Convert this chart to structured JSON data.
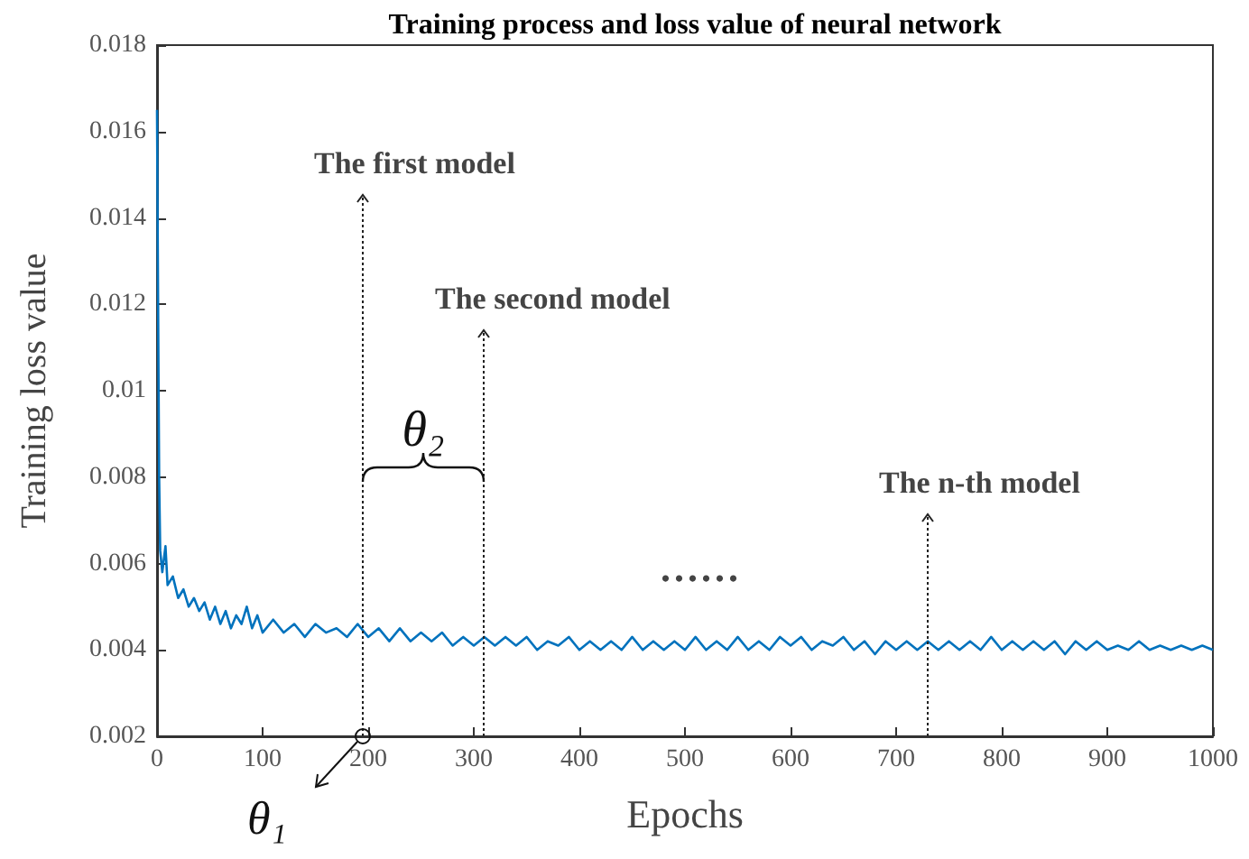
{
  "chart_data": {
    "type": "line",
    "title": "Training process and loss value of neural network",
    "xlabel": "Epochs",
    "ylabel": "Training loss value",
    "xlim": [
      0,
      1000
    ],
    "xticks": [
      0,
      100,
      200,
      300,
      400,
      500,
      600,
      700,
      800,
      900,
      1000
    ],
    "ylim": [
      0.002,
      0.018
    ],
    "yticks": [
      0.002,
      0.004,
      0.006,
      0.008,
      0.01,
      0.012,
      0.014,
      0.016,
      0.018
    ],
    "grid": false,
    "marker": "none",
    "line_style": "solid",
    "annotations": [
      "The first model",
      "The second model",
      "The n-th model",
      "θ₂",
      "θ₁",
      "......"
    ],
    "series": [
      {
        "color": "#0072bd",
        "x": [
          0,
          1,
          2,
          3,
          5,
          8,
          10,
          15,
          20,
          25,
          30,
          35,
          40,
          45,
          50,
          55,
          60,
          65,
          70,
          75,
          80,
          85,
          90,
          95,
          100,
          110,
          120,
          130,
          140,
          150,
          160,
          170,
          180,
          190,
          200,
          210,
          220,
          230,
          240,
          250,
          260,
          270,
          280,
          290,
          300,
          310,
          320,
          330,
          340,
          350,
          360,
          370,
          380,
          390,
          400,
          410,
          420,
          430,
          440,
          450,
          460,
          470,
          480,
          490,
          500,
          510,
          520,
          530,
          540,
          550,
          560,
          570,
          580,
          590,
          600,
          610,
          620,
          630,
          640,
          650,
          660,
          670,
          680,
          690,
          700,
          710,
          720,
          730,
          740,
          750,
          760,
          770,
          780,
          790,
          800,
          810,
          820,
          830,
          840,
          850,
          860,
          870,
          880,
          890,
          900,
          910,
          920,
          930,
          940,
          950,
          960,
          970,
          980,
          990,
          1000
        ],
        "values": [
          0.0165,
          0.012,
          0.008,
          0.0063,
          0.0058,
          0.0064,
          0.0055,
          0.0057,
          0.0052,
          0.0054,
          0.005,
          0.0052,
          0.0049,
          0.0051,
          0.0047,
          0.005,
          0.0046,
          0.0049,
          0.0045,
          0.0048,
          0.0046,
          0.005,
          0.0045,
          0.0048,
          0.0044,
          0.0047,
          0.0044,
          0.0046,
          0.0043,
          0.0046,
          0.0044,
          0.0045,
          0.0043,
          0.0046,
          0.0043,
          0.0045,
          0.0042,
          0.0045,
          0.0042,
          0.0044,
          0.0042,
          0.0044,
          0.0041,
          0.0043,
          0.0041,
          0.0043,
          0.0041,
          0.0043,
          0.0041,
          0.0043,
          0.004,
          0.0042,
          0.0041,
          0.0043,
          0.004,
          0.0042,
          0.004,
          0.0042,
          0.004,
          0.0043,
          0.004,
          0.0042,
          0.004,
          0.0042,
          0.004,
          0.0043,
          0.004,
          0.0042,
          0.004,
          0.0043,
          0.004,
          0.0042,
          0.004,
          0.0043,
          0.0041,
          0.0043,
          0.004,
          0.0042,
          0.0041,
          0.0043,
          0.004,
          0.0042,
          0.0039,
          0.0042,
          0.004,
          0.0042,
          0.004,
          0.0042,
          0.004,
          0.0042,
          0.004,
          0.0042,
          0.004,
          0.0043,
          0.004,
          0.0042,
          0.004,
          0.0042,
          0.004,
          0.0042,
          0.0039,
          0.0042,
          0.004,
          0.0042,
          0.004,
          0.0041,
          0.004,
          0.0042,
          0.004,
          0.0041,
          0.004,
          0.0041,
          0.004,
          0.0041,
          0.004
        ]
      }
    ]
  }
}
